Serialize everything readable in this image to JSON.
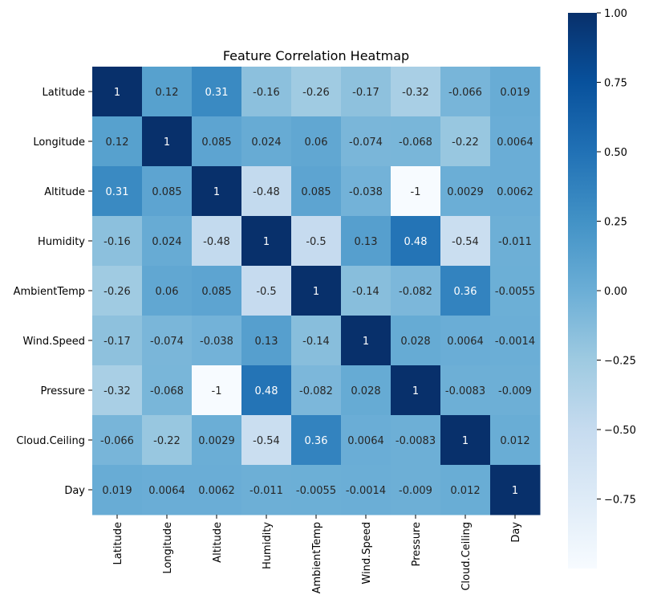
{
  "chart_data": {
    "type": "heatmap",
    "title": "Feature Correlation Heatmap",
    "rows": [
      "Latitude",
      "Longitude",
      "Altitude",
      "Humidity",
      "AmbientTemp",
      "Wind.Speed",
      "Pressure",
      "Cloud.Ceiling",
      "Day"
    ],
    "columns": [
      "Latitude",
      "Longitude",
      "Altitude",
      "Humidity",
      "AmbientTemp",
      "Wind.Speed",
      "Pressure",
      "Cloud.Ceiling",
      "Day"
    ],
    "values": [
      [
        1,
        0.12,
        0.31,
        -0.16,
        -0.26,
        -0.17,
        -0.32,
        -0.066,
        0.019
      ],
      [
        0.12,
        1,
        0.085,
        0.024,
        0.06,
        -0.074,
        -0.068,
        -0.22,
        0.0064
      ],
      [
        0.31,
        0.085,
        1,
        -0.48,
        0.085,
        -0.038,
        -1,
        0.0029,
        0.0062
      ],
      [
        -0.16,
        0.024,
        -0.48,
        1,
        -0.5,
        0.13,
        0.48,
        -0.54,
        -0.011
      ],
      [
        -0.26,
        0.06,
        0.085,
        -0.5,
        1,
        -0.14,
        -0.082,
        0.36,
        -0.0055
      ],
      [
        -0.17,
        -0.074,
        -0.038,
        0.13,
        -0.14,
        1,
        0.028,
        0.0064,
        -0.0014
      ],
      [
        -0.32,
        -0.068,
        -1,
        0.48,
        -0.082,
        0.028,
        1,
        -0.0083,
        -0.009
      ],
      [
        -0.066,
        -0.22,
        0.0029,
        -0.54,
        0.36,
        0.0064,
        -0.0083,
        1,
        0.012
      ],
      [
        0.019,
        0.0064,
        0.0062,
        -0.011,
        -0.0055,
        -0.0014,
        -0.009,
        0.012,
        1
      ]
    ],
    "value_labels": [
      [
        "1",
        "0.12",
        "0.31",
        "-0.16",
        "-0.26",
        "-0.17",
        "-0.32",
        "-0.066",
        "0.019"
      ],
      [
        "0.12",
        "1",
        "0.085",
        "0.024",
        "0.06",
        "-0.074",
        "-0.068",
        "-0.22",
        "0.0064"
      ],
      [
        "0.31",
        "0.085",
        "1",
        "-0.48",
        "0.085",
        "-0.038",
        "-1",
        "0.0029",
        "0.0062"
      ],
      [
        "-0.16",
        "0.024",
        "-0.48",
        "1",
        "-0.5",
        "0.13",
        "0.48",
        "-0.54",
        "-0.011"
      ],
      [
        "-0.26",
        "0.06",
        "0.085",
        "-0.5",
        "1",
        "-0.14",
        "-0.082",
        "0.36",
        "-0.0055"
      ],
      [
        "-0.17",
        "-0.074",
        "-0.038",
        "0.13",
        "-0.14",
        "1",
        "0.028",
        "0.0064",
        "-0.0014"
      ],
      [
        "-0.32",
        "-0.068",
        "-1",
        "0.48",
        "-0.082",
        "0.028",
        "1",
        "-0.0083",
        "-0.009"
      ],
      [
        "-0.066",
        "-0.22",
        "0.0029",
        "-0.54",
        "0.36",
        "0.0064",
        "-0.0083",
        "1",
        "0.012"
      ],
      [
        "0.019",
        "0.0064",
        "0.0062",
        "-0.011",
        "-0.0055",
        "-0.0014",
        "-0.009",
        "0.012",
        "1"
      ]
    ],
    "colorbar": {
      "colormap": "Blues",
      "vmin": -1,
      "vmax": 1,
      "ticks": [
        1.0,
        0.75,
        0.5,
        0.25,
        0.0,
        -0.25,
        -0.5,
        -0.75
      ],
      "tick_labels": [
        "1.00",
        "0.75",
        "0.50",
        "0.25",
        "0.00",
        "−0.25",
        "−0.50",
        "−0.75"
      ],
      "colors": [
        "#f7fbff",
        "#deebf7",
        "#c6dbef",
        "#9ecae1",
        "#6baed6",
        "#4292c6",
        "#2171b5",
        "#08519c",
        "#08306b"
      ]
    },
    "annotation_light_color": "#ffffff",
    "annotation_dark_color": "#262626"
  }
}
